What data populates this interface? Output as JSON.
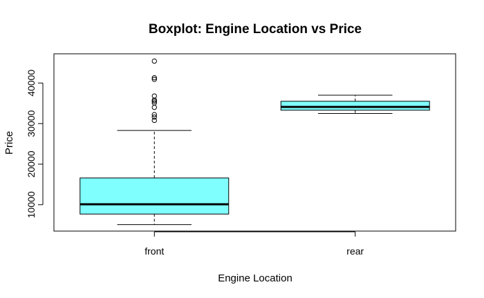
{
  "chart_data": {
    "type": "boxplot",
    "title": "Boxplot: Engine Location vs Price",
    "xlabel": "Engine Location",
    "ylabel": "Price",
    "categories": [
      "front",
      "rear"
    ],
    "ylim": [
      3500,
      47200
    ],
    "yticks": [
      10000,
      20000,
      30000,
      40000
    ],
    "ytick_labels": [
      "10000",
      "20000",
      "30000",
      "40000"
    ],
    "box_fill": "#80ffff",
    "grid": false,
    "boxes": [
      {
        "name": "front",
        "whisker_low": 5100,
        "q1": 7700,
        "median": 10100,
        "q3": 16600,
        "whisker_high": 28300,
        "outliers": [
          30800,
          31600,
          32200,
          34000,
          35100,
          35500,
          35800,
          36800,
          40900,
          41300,
          45400
        ]
      },
      {
        "name": "rear",
        "whisker_low": 32500,
        "q1": 33300,
        "median": 34100,
        "q3": 35500,
        "whisker_high": 37000,
        "outliers": []
      }
    ]
  }
}
